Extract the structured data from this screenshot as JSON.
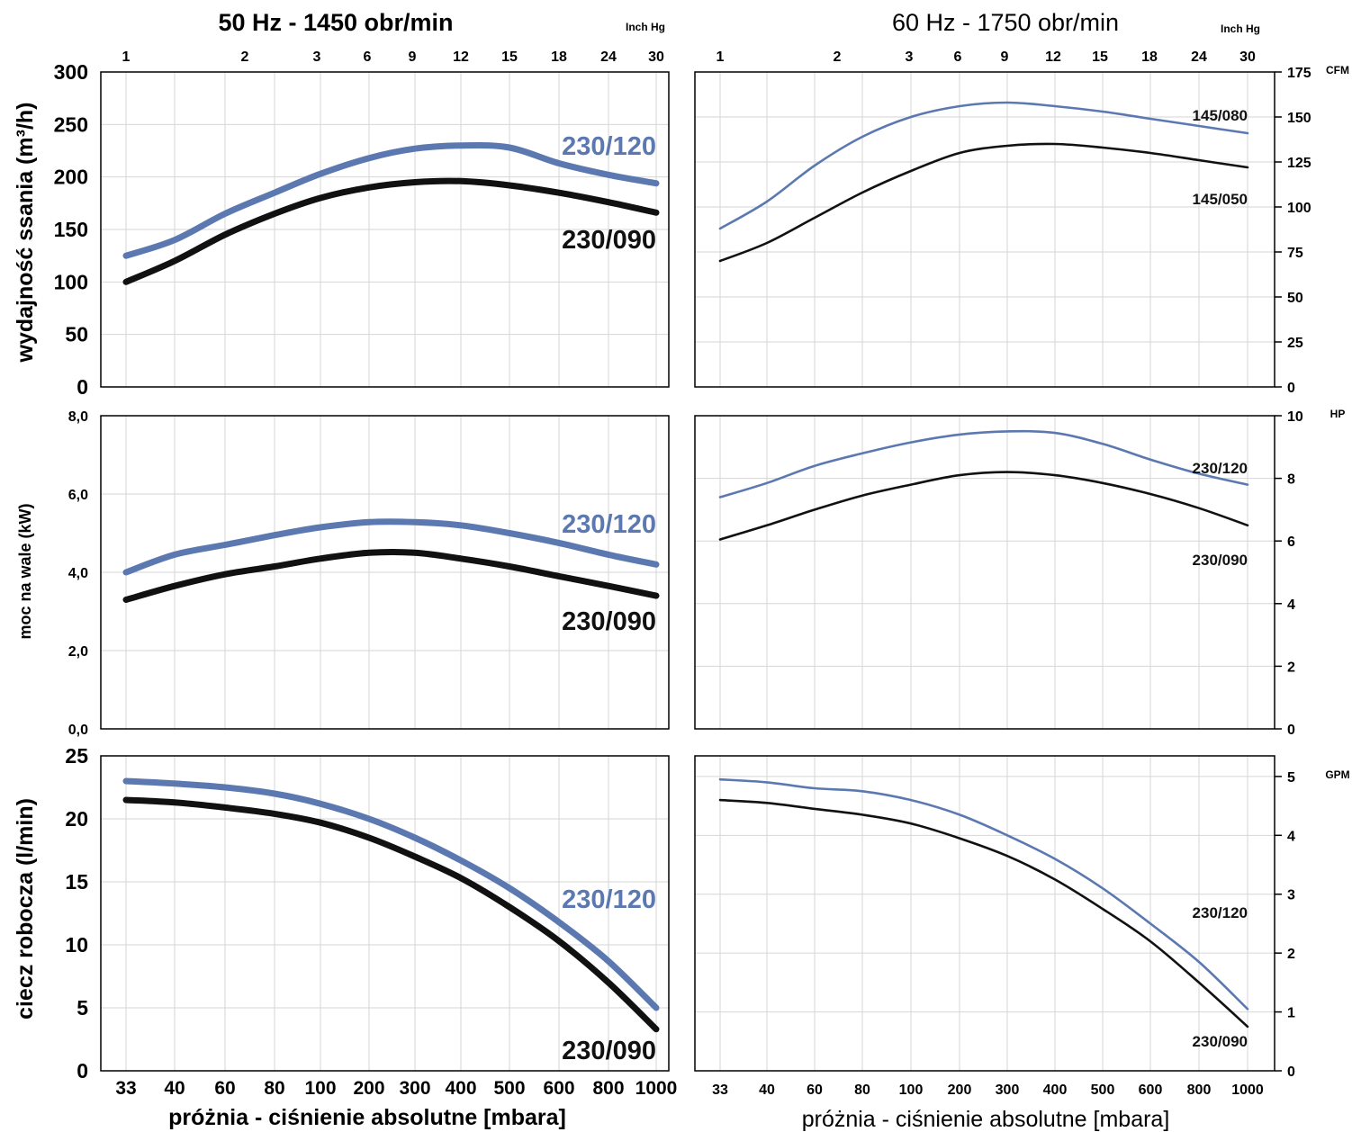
{
  "titles": {
    "left": "50 Hz - 1450 obr/min",
    "right": "60 Hz - 1750 obr/min",
    "inch_hg_left": "Inch Hg",
    "inch_hg_right": "Inch Hg"
  },
  "xlabels": {
    "left": "próżnia - ciśnienie absolutne [mbara]",
    "right": "próżnia - ciśnienie absolutne [mbara]"
  },
  "ylabels": {
    "top": "wydajność ssania (m³/h)",
    "mid": "moc na wale (kW)",
    "bot": "ciecz robocza (l/min)"
  },
  "colors": {
    "blue": "#5b79b0",
    "black": "#111111",
    "grid": "#d6d6d6"
  },
  "chart_data": {
    "type": "line",
    "x_scale": "categorical-log-like",
    "x_bottom_ticks": [
      "33",
      "40",
      "60",
      "80",
      "100",
      "200",
      "300",
      "400",
      "500",
      "600",
      "800",
      "1000"
    ],
    "x_top_ticks": [
      "1",
      "2",
      "3",
      "6",
      "9",
      "12",
      "15",
      "18",
      "24",
      "30"
    ],
    "panels": [
      {
        "id": "left-top",
        "y_ticks": [
          "0",
          "50",
          "100",
          "150",
          "200",
          "250",
          "300"
        ],
        "ylim": [
          0,
          300
        ],
        "series": [
          {
            "name": "230/120",
            "color": "blue",
            "values": [
              125,
              140,
              165,
              185,
              203,
              218,
              227,
              230,
              228,
              213,
              202,
              194
            ]
          },
          {
            "name": "230/090",
            "color": "black",
            "values": [
              100,
              120,
              145,
              165,
              180,
              190,
              195,
              196,
              192,
              185,
              176,
              166
            ]
          }
        ]
      },
      {
        "id": "right-top",
        "y2_unit": "CFM",
        "y2_ticks": [
          "0",
          "25",
          "50",
          "75",
          "100",
          "125",
          "150",
          "175"
        ],
        "ylim": [
          0,
          175
        ],
        "series": [
          {
            "name": "145/080",
            "color": "blue",
            "values": [
              88,
              103,
              123,
              139,
              150,
              156,
              158,
              156,
              153,
              149,
              145,
              141
            ]
          },
          {
            "name": "145/050",
            "color": "black",
            "values": [
              70,
              80,
              94,
              108,
              120,
              130,
              134,
              135,
              133,
              130,
              126,
              122
            ]
          }
        ]
      },
      {
        "id": "left-mid",
        "y_ticks": [
          "0,0",
          "2,0",
          "4,0",
          "6,0",
          "8,0"
        ],
        "ylim": [
          0,
          8
        ],
        "series": [
          {
            "name": "230/120",
            "color": "blue",
            "values": [
              4.0,
              4.45,
              4.7,
              4.95,
              5.15,
              5.28,
              5.28,
              5.2,
              5.0,
              4.75,
              4.45,
              4.2
            ]
          },
          {
            "name": "230/090",
            "color": "black",
            "values": [
              3.3,
              3.65,
              3.95,
              4.15,
              4.35,
              4.5,
              4.5,
              4.35,
              4.15,
              3.9,
              3.65,
              3.4
            ]
          }
        ]
      },
      {
        "id": "right-mid",
        "y2_unit": "HP",
        "y2_ticks": [
          "0",
          "2",
          "4",
          "6",
          "8",
          "10"
        ],
        "ylim": [
          0,
          10
        ],
        "series": [
          {
            "name": "230/120",
            "color": "blue",
            "values": [
              7.4,
              7.85,
              8.4,
              8.8,
              9.15,
              9.4,
              9.5,
              9.45,
              9.1,
              8.6,
              8.15,
              7.8
            ]
          },
          {
            "name": "230/090",
            "color": "black",
            "values": [
              6.05,
              6.5,
              7.0,
              7.45,
              7.8,
              8.1,
              8.2,
              8.1,
              7.85,
              7.5,
              7.05,
              6.5
            ]
          }
        ]
      },
      {
        "id": "left-bot",
        "y_ticks": [
          "0",
          "5",
          "10",
          "15",
          "20",
          "25"
        ],
        "ylim": [
          0,
          25
        ],
        "series": [
          {
            "name": "230/120",
            "color": "blue",
            "values": [
              23.0,
              22.8,
              22.5,
              22.0,
              21.2,
              20.0,
              18.5,
              16.7,
              14.5,
              11.8,
              8.7,
              5.0
            ]
          },
          {
            "name": "230/090",
            "color": "black",
            "values": [
              21.5,
              21.3,
              20.9,
              20.4,
              19.7,
              18.5,
              17.0,
              15.3,
              13.0,
              10.3,
              7.0,
              3.3
            ]
          }
        ]
      },
      {
        "id": "right-bot",
        "y2_unit": "GPM",
        "y2_ticks": [
          "0",
          "1",
          "2",
          "3",
          "4",
          "5"
        ],
        "ylim": [
          0,
          5.35
        ],
        "series": [
          {
            "name": "230/120",
            "color": "blue",
            "values": [
              4.95,
              4.9,
              4.8,
              4.75,
              4.6,
              4.35,
              4.0,
              3.6,
              3.1,
              2.5,
              1.85,
              1.05
            ]
          },
          {
            "name": "230/090",
            "color": "black",
            "values": [
              4.6,
              4.55,
              4.45,
              4.35,
              4.2,
              3.95,
              3.65,
              3.25,
              2.75,
              2.2,
              1.5,
              0.75
            ]
          }
        ]
      }
    ]
  }
}
